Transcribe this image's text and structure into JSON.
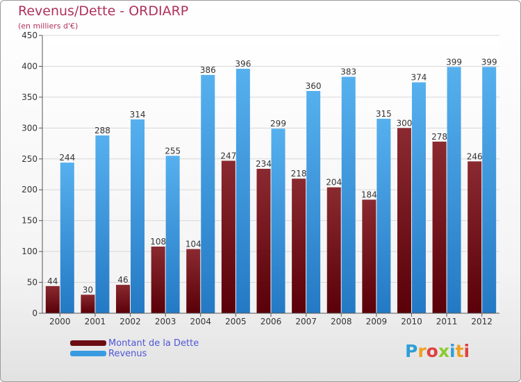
{
  "header": {
    "title": "Revenus/Dette - ORDIARP",
    "subtitle": "(en milliers d'€)"
  },
  "legend": [
    {
      "label": "Montant de la Dette",
      "color": "#6b0d12"
    },
    {
      "label": "Revenus",
      "color": "#3a9be0"
    }
  ],
  "logo": {
    "text": "Proxiti",
    "letters": [
      {
        "ch": "P",
        "color": "#2f9fd6"
      },
      {
        "ch": "r",
        "color": "#f0a020"
      },
      {
        "ch": "o",
        "color": "#e04040"
      },
      {
        "ch": "x",
        "color": "#8acb30"
      },
      {
        "ch": "i",
        "color": "#2f9fd6"
      },
      {
        "ch": "t",
        "color": "#f0a020"
      },
      {
        "ch": "i",
        "color": "#e04040"
      }
    ]
  },
  "chart_data": {
    "type": "bar",
    "title": "Revenus/Dette - ORDIARP",
    "subtitle": "(en milliers d'€)",
    "categories": [
      "2000",
      "2001",
      "2002",
      "2003",
      "2004",
      "2005",
      "2006",
      "2007",
      "2008",
      "2009",
      "2010",
      "2011",
      "2012"
    ],
    "series": [
      {
        "name": "Montant de la Dette",
        "color": "#6b0d12",
        "values": [
          44,
          30,
          46,
          108,
          104,
          247,
          234,
          218,
          204,
          184,
          300,
          278,
          246
        ]
      },
      {
        "name": "Revenus",
        "color": "#3a9be0",
        "values": [
          244,
          288,
          314,
          255,
          386,
          396,
          299,
          360,
          383,
          315,
          374,
          399,
          399
        ]
      }
    ],
    "ylim": [
      0,
      450
    ],
    "yticks": [
      0,
      50,
      100,
      150,
      200,
      250,
      300,
      350,
      400,
      450
    ],
    "grid": true,
    "legend_position": "bottom-left"
  }
}
